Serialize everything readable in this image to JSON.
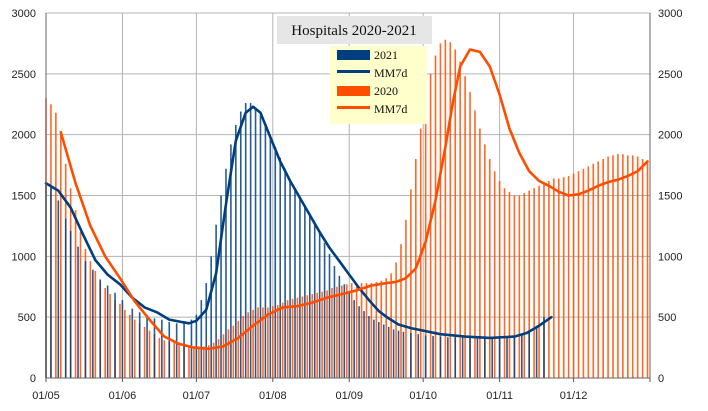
{
  "chart_data": {
    "type": "bar",
    "title": "Hospitals 2020-2021",
    "xlabel": "",
    "ylabel": "",
    "ylim": [
      0,
      3000
    ],
    "yticks": [
      0,
      500,
      1000,
      1500,
      2000,
      2500,
      3000
    ],
    "ytick_labels": [
      "0",
      "500",
      "1000",
      "1500",
      "2000",
      "2500",
      "3000"
    ],
    "xticks": [
      0,
      31,
      61,
      92,
      123,
      153,
      184,
      214,
      245
    ],
    "xtick_labels": [
      "01/05",
      "01/06",
      "01/07",
      "01/08",
      "01/09",
      "01/10",
      "01/11",
      "01/12",
      ""
    ],
    "xlim": [
      0,
      245
    ],
    "grid": true,
    "legend": "top-center",
    "colors": {
      "2021": "#003f7f",
      "2020": "#ff4d00",
      "grid": "#b3b3b3",
      "legend_bg": "#ffffcc"
    },
    "series": [
      {
        "name": "2021",
        "kind": "bar",
        "color": "#003f7f",
        "x": [
          0,
          2,
          5,
          8,
          10,
          13,
          16,
          19,
          22,
          25,
          28,
          31,
          35,
          38,
          41,
          44,
          47,
          50,
          53,
          56,
          59,
          61,
          63,
          65,
          67,
          69,
          71,
          73,
          75,
          77,
          79,
          81,
          83,
          85,
          87,
          89,
          91,
          93,
          95,
          97,
          99,
          101,
          103,
          105,
          107,
          109,
          111,
          113,
          115,
          117,
          119,
          121,
          123,
          125,
          127,
          129,
          131,
          133,
          135,
          137,
          139,
          141,
          143,
          145,
          148,
          151,
          154,
          157,
          160,
          163,
          166,
          169,
          172,
          175,
          178,
          181,
          184,
          187,
          190,
          193,
          196,
          199,
          202
        ],
        "values": [
          1600,
          1580,
          1460,
          1310,
          1210,
          1080,
          960,
          890,
          810,
          760,
          700,
          640,
          570,
          540,
          520,
          490,
          480,
          460,
          450,
          460,
          480,
          520,
          640,
          780,
          1000,
          1260,
          1500,
          1720,
          1920,
          2080,
          2190,
          2260,
          2260,
          2220,
          2160,
          2080,
          1990,
          1900,
          1810,
          1720,
          1630,
          1560,
          1480,
          1420,
          1340,
          1270,
          1200,
          1110,
          1020,
          920,
          840,
          770,
          700,
          640,
          590,
          550,
          510,
          480,
          460,
          440,
          420,
          400,
          390,
          380,
          370,
          360,
          350,
          345,
          340,
          335,
          335,
          335,
          335,
          330,
          330,
          330,
          330,
          330,
          340,
          360,
          390,
          430,
          500
        ]
      },
      {
        "name": "MM7d",
        "kind": "line",
        "color": "#003f7f",
        "x": [
          0,
          5,
          10,
          15,
          20,
          25,
          30,
          35,
          40,
          45,
          50,
          55,
          58,
          61,
          65,
          69,
          73,
          77,
          81,
          84,
          87,
          91,
          95,
          99,
          103,
          107,
          111,
          115,
          119,
          123,
          127,
          131,
          135,
          139,
          143,
          148,
          153,
          160,
          170,
          180,
          190,
          195,
          200,
          205
        ],
        "values": [
          1600,
          1540,
          1400,
          1180,
          970,
          850,
          770,
          660,
          580,
          540,
          480,
          460,
          450,
          470,
          560,
          860,
          1430,
          1950,
          2180,
          2230,
          2180,
          1980,
          1780,
          1620,
          1480,
          1340,
          1200,
          1070,
          960,
          850,
          740,
          640,
          550,
          490,
          440,
          410,
          390,
          360,
          340,
          330,
          340,
          370,
          430,
          500
        ]
      },
      {
        "name": "2020",
        "kind": "bar",
        "color": "#ff4d00",
        "x": [
          0,
          2,
          4,
          6,
          8,
          10,
          12,
          14,
          16,
          18,
          20,
          22,
          24,
          26,
          28,
          30,
          32,
          34,
          36,
          38,
          40,
          42,
          44,
          46,
          48,
          50,
          52,
          54,
          56,
          58,
          60,
          62,
          64,
          66,
          68,
          70,
          72,
          74,
          76,
          78,
          80,
          82,
          84,
          86,
          88,
          90,
          92,
          94,
          96,
          98,
          100,
          102,
          104,
          106,
          108,
          110,
          112,
          114,
          116,
          118,
          120,
          122,
          124,
          126,
          128,
          130,
          132,
          134,
          136,
          138,
          140,
          142,
          144,
          146,
          148,
          150,
          152,
          154,
          156,
          158,
          160,
          162,
          164,
          166,
          168,
          170,
          172,
          174,
          176,
          178,
          180,
          182,
          184,
          186,
          188,
          190,
          192,
          194,
          196,
          198,
          200,
          202,
          204,
          206,
          208,
          210,
          212,
          214,
          216,
          218,
          220,
          222,
          224,
          226,
          228,
          230,
          232,
          234,
          236,
          238,
          240,
          242,
          244
        ],
        "values": [
          2300,
          2250,
          2180,
          2000,
          1760,
          1560,
          1380,
          1200,
          1060,
          960,
          880,
          800,
          740,
          690,
          640,
          610,
          560,
          520,
          480,
          450,
          420,
          390,
          360,
          330,
          310,
          300,
          290,
          280,
          270,
          265,
          260,
          260,
          260,
          270,
          290,
          320,
          360,
          400,
          430,
          470,
          510,
          540,
          560,
          580,
          580,
          580,
          590,
          600,
          620,
          640,
          650,
          660,
          670,
          680,
          690,
          700,
          710,
          720,
          740,
          750,
          760,
          770,
          780,
          780,
          780,
          780,
          780,
          790,
          800,
          820,
          860,
          950,
          1100,
          1300,
          1550,
          1800,
          2050,
          2300,
          2500,
          2650,
          2750,
          2780,
          2760,
          2700,
          2600,
          2480,
          2350,
          2200,
          2050,
          1920,
          1800,
          1700,
          1620,
          1560,
          1530,
          1500,
          1500,
          1520,
          1540,
          1560,
          1580,
          1600,
          1620,
          1640,
          1640,
          1650,
          1660,
          1680,
          1700,
          1720,
          1740,
          1760,
          1780,
          1800,
          1820,
          1830,
          1840,
          1840,
          1830,
          1830,
          1820,
          1800,
          1780
        ]
      },
      {
        "name": "MM7d",
        "kind": "line",
        "color": "#ff4d00",
        "x": [
          6,
          12,
          18,
          24,
          30,
          36,
          42,
          48,
          54,
          60,
          66,
          72,
          78,
          84,
          90,
          96,
          102,
          108,
          114,
          120,
          126,
          132,
          138,
          142,
          146,
          150,
          154,
          158,
          162,
          165,
          168,
          172,
          176,
          180,
          184,
          188,
          192,
          196,
          200,
          204,
          208,
          212,
          216,
          220,
          224,
          228,
          232,
          236,
          240,
          244
        ],
        "values": [
          2020,
          1600,
          1250,
          1000,
          820,
          630,
          480,
          340,
          280,
          250,
          240,
          260,
          330,
          430,
          520,
          580,
          590,
          620,
          660,
          690,
          720,
          760,
          780,
          790,
          820,
          900,
          1120,
          1460,
          1900,
          2260,
          2560,
          2700,
          2680,
          2560,
          2330,
          2050,
          1850,
          1700,
          1620,
          1580,
          1530,
          1500,
          1510,
          1540,
          1580,
          1610,
          1630,
          1660,
          1700,
          1780
        ]
      }
    ]
  }
}
